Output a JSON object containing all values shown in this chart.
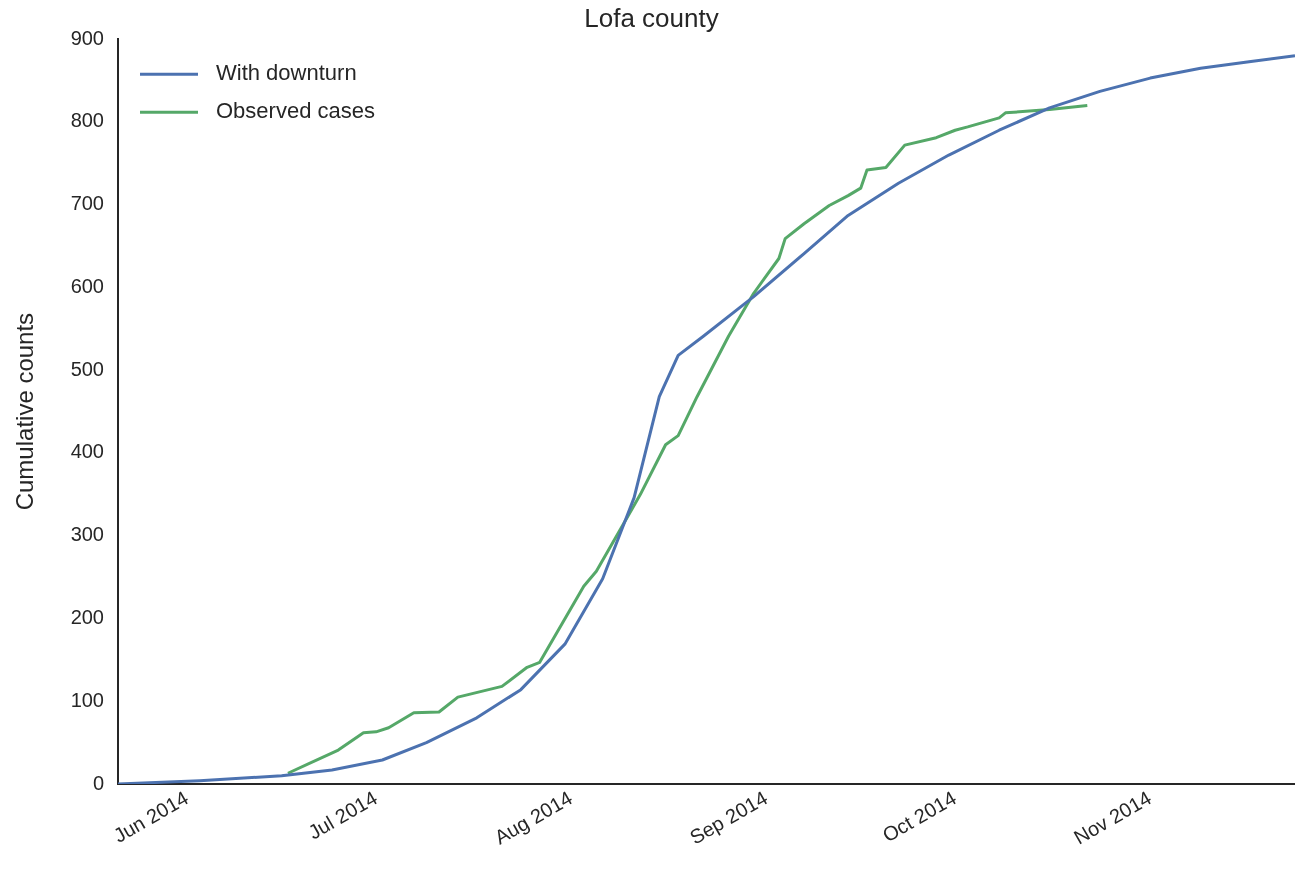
{
  "chart_data": {
    "type": "line",
    "title": "Lofa county",
    "ylabel": "Cumulative counts",
    "xlim": [
      "2014-05-21",
      "2014-11-24"
    ],
    "xticks": [
      {
        "value": "2014-06-01",
        "label": "Jun 2014"
      },
      {
        "value": "2014-07-01",
        "label": "Jul 2014"
      },
      {
        "value": "2014-08-01",
        "label": "Aug 2014"
      },
      {
        "value": "2014-09-01",
        "label": "Sep 2014"
      },
      {
        "value": "2014-10-01",
        "label": "Oct 2014"
      },
      {
        "value": "2014-11-01",
        "label": "Nov 2014"
      }
    ],
    "ylim": [
      0,
      900
    ],
    "yticks": [
      0,
      100,
      200,
      300,
      400,
      500,
      600,
      700,
      800,
      900
    ],
    "grid": false,
    "legend": "top left",
    "line_style": "solid",
    "marker": "none",
    "series": [
      {
        "name": "With downturn",
        "color": "#4c72b0",
        "x": [
          "2014-05-21",
          "2014-06-03",
          "2014-06-16",
          "2014-06-24",
          "2014-07-02",
          "2014-07-09",
          "2014-07-17",
          "2014-07-24",
          "2014-07-31",
          "2014-08-06",
          "2014-08-11",
          "2014-08-15",
          "2014-08-18",
          "2014-08-22",
          "2014-08-30",
          "2014-09-07",
          "2014-09-14",
          "2014-09-22",
          "2014-09-30",
          "2014-10-08",
          "2014-10-16",
          "2014-10-24",
          "2014-11-01",
          "2014-11-09",
          "2014-11-17",
          "2014-11-24"
        ],
        "values": [
          0,
          4,
          10,
          17,
          29,
          50,
          80,
          114,
          169,
          248,
          346,
          468,
          518,
          541,
          589,
          641,
          687,
          726,
          760,
          790,
          817,
          837,
          853,
          865,
          873,
          880
        ]
      },
      {
        "name": "Observed cases",
        "color": "#55a868",
        "x": [
          "2014-06-17",
          "2014-06-25",
          "2014-06-29",
          "2014-07-01",
          "2014-07-03",
          "2014-07-07",
          "2014-07-11",
          "2014-07-14",
          "2014-07-21",
          "2014-07-25",
          "2014-07-27",
          "2014-08-03",
          "2014-08-05",
          "2014-08-12",
          "2014-08-16",
          "2014-08-18",
          "2014-08-21",
          "2014-08-26",
          "2014-08-30",
          "2014-09-03",
          "2014-09-04",
          "2014-09-07",
          "2014-09-11",
          "2014-09-14",
          "2014-09-16",
          "2014-09-17",
          "2014-09-20",
          "2014-09-23",
          "2014-09-28",
          "2014-10-01",
          "2014-10-03",
          "2014-10-08",
          "2014-10-09",
          "2014-10-16",
          "2014-10-22"
        ],
        "values": [
          13,
          41,
          62,
          63,
          68,
          86,
          87,
          105,
          118,
          141,
          147,
          239,
          257,
          350,
          410,
          421,
          468,
          541,
          593,
          635,
          659,
          677,
          699,
          711,
          720,
          742,
          745,
          772,
          781,
          790,
          794,
          805,
          811,
          815,
          820
        ]
      }
    ]
  }
}
